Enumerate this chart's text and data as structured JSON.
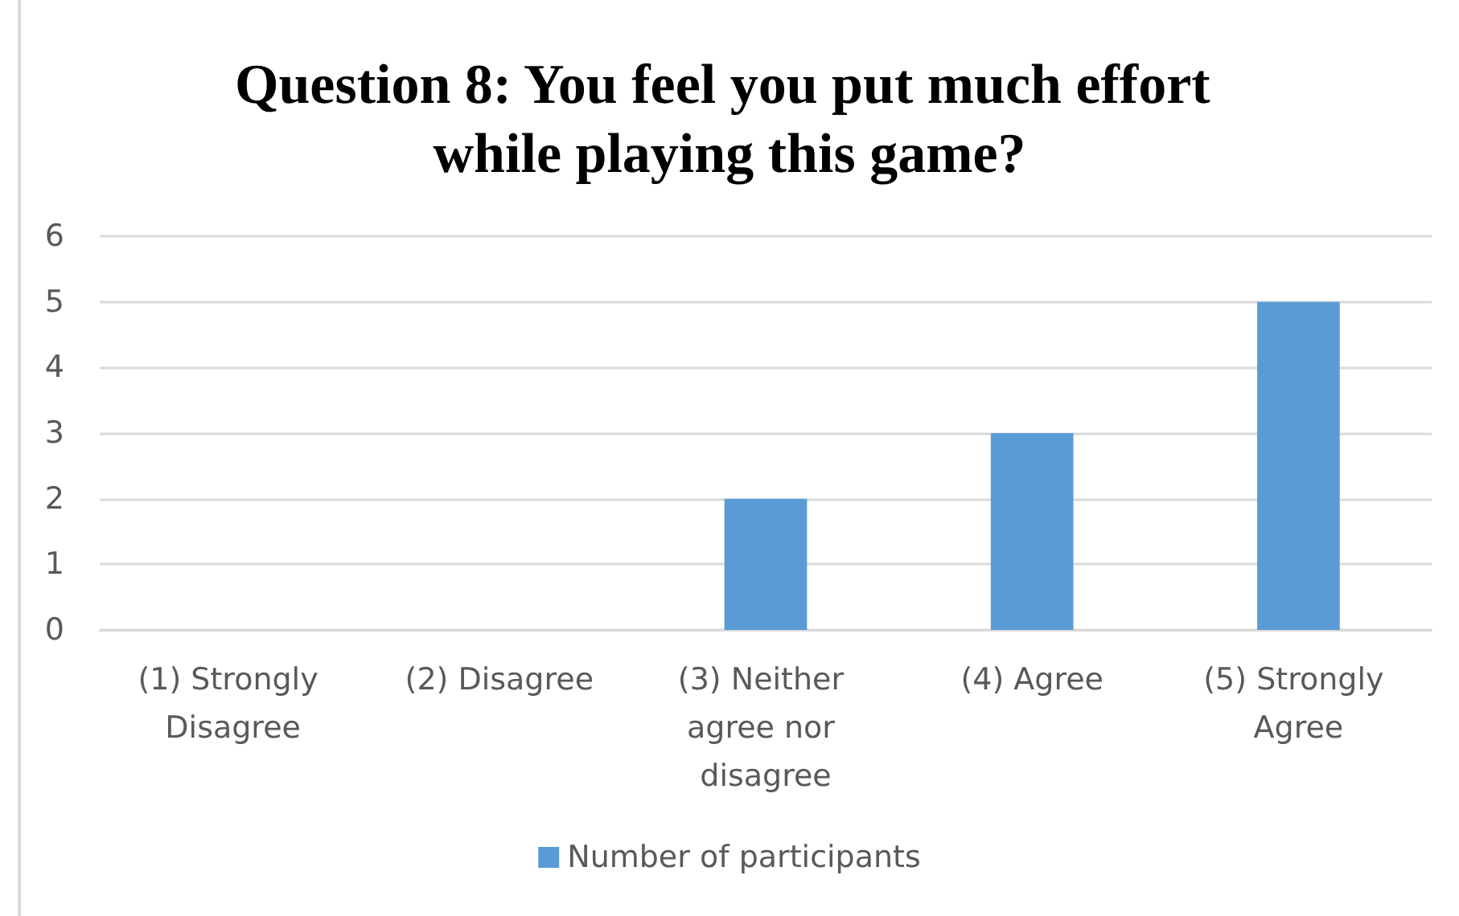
{
  "chart_data": {
    "type": "bar",
    "title": "Question 8: You feel you put much effort while playing this game?",
    "categories": [
      "(1) Strongly Disagree",
      "(2) Disagree",
      "(3) Neither agree nor disagree",
      "(4) Agree",
      "(5) Strongly Agree"
    ],
    "series": [
      {
        "name": "Number of participants",
        "color": "#5b9bd5",
        "values": [
          0,
          0,
          2,
          3,
          5
        ]
      }
    ],
    "ylim": [
      0,
      6
    ],
    "yticks": [
      0,
      1,
      2,
      3,
      4,
      5,
      6
    ],
    "grid": "y",
    "legend": "bottom"
  }
}
